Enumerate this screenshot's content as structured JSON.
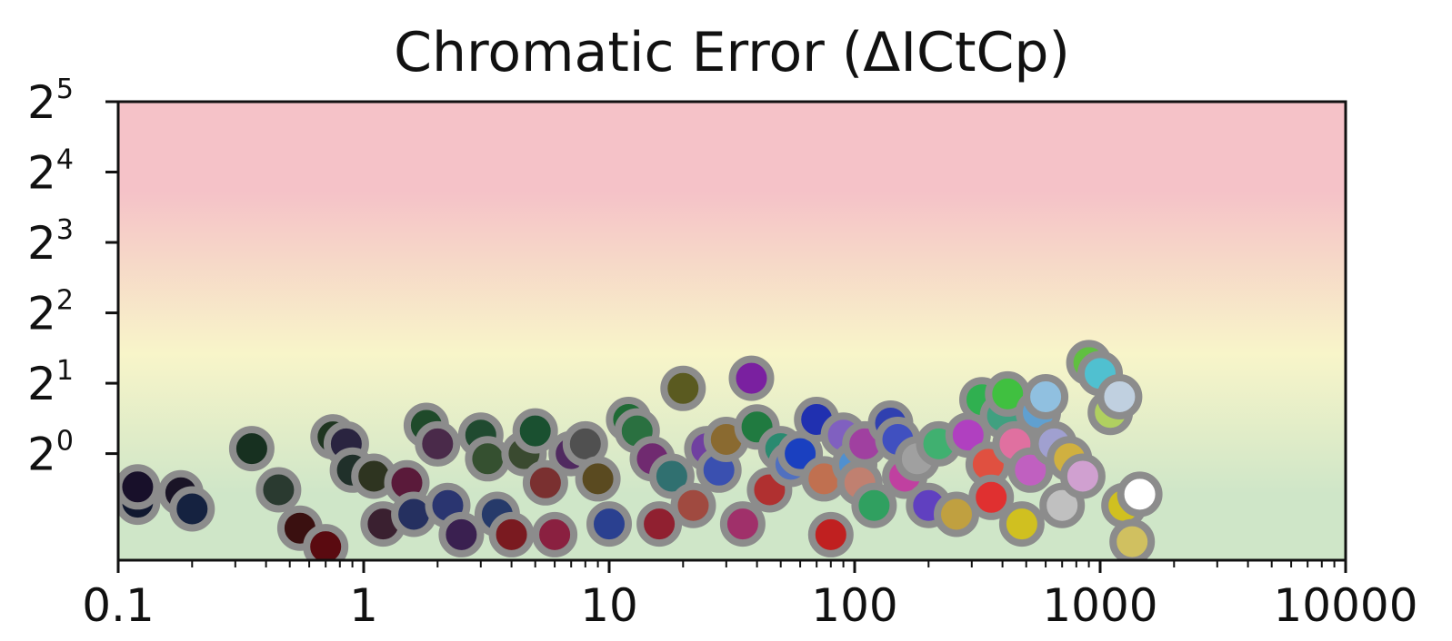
{
  "chart_data": {
    "type": "scatter",
    "title": "Chromatic Error (ΔICtCp)",
    "xlabel": "",
    "ylabel": "",
    "x_scale": "log",
    "y_scale": "log2",
    "xlim": [
      0.1,
      10000
    ],
    "ylim": [
      0.35,
      32
    ],
    "x_ticks": [
      {
        "value": 0.1,
        "label": "0.1"
      },
      {
        "value": 1,
        "label": "1"
      },
      {
        "value": 10,
        "label": "10"
      },
      {
        "value": 100,
        "label": "100"
      },
      {
        "value": 1000,
        "label": "1000"
      },
      {
        "value": 10000,
        "label": "10000"
      }
    ],
    "x_tick_lowest_label": "0.1",
    "y_ticks": [
      {
        "value": 1,
        "base": "2",
        "exp": "0"
      },
      {
        "value": 2,
        "base": "2",
        "exp": "1"
      },
      {
        "value": 4,
        "base": "2",
        "exp": "2"
      },
      {
        "value": 8,
        "base": "2",
        "exp": "3"
      },
      {
        "value": 16,
        "base": "2",
        "exp": "4"
      },
      {
        "value": 32,
        "base": "2",
        "exp": "5"
      }
    ],
    "background_bands": [
      {
        "from": 0.35,
        "to": 1.3,
        "color": "#cfe6c8"
      },
      {
        "from": 1.3,
        "to": 5.5,
        "color": "#f8f5c9"
      },
      {
        "from": 5.5,
        "to": 32,
        "color": "#f5c2c8"
      }
    ],
    "marker_edge_color": "#8c8c8c",
    "grid": false,
    "legend": "none",
    "points": [
      {
        "x": 0.12,
        "y": 0.62,
        "color": "#101830"
      },
      {
        "x": 0.12,
        "y": 0.72,
        "color": "#18102a"
      },
      {
        "x": 0.18,
        "y": 0.68,
        "color": "#1a1426"
      },
      {
        "x": 0.2,
        "y": 0.58,
        "color": "#152240"
      },
      {
        "x": 0.35,
        "y": 1.05,
        "color": "#173020"
      },
      {
        "x": 0.45,
        "y": 0.7,
        "color": "#2a3a30"
      },
      {
        "x": 0.55,
        "y": 0.48,
        "color": "#3a1010"
      },
      {
        "x": 0.7,
        "y": 0.4,
        "color": "#5a0a10"
      },
      {
        "x": 0.75,
        "y": 1.18,
        "color": "#1f3520"
      },
      {
        "x": 0.85,
        "y": 1.1,
        "color": "#2a2440"
      },
      {
        "x": 0.9,
        "y": 0.85,
        "color": "#20302a"
      },
      {
        "x": 1.1,
        "y": 0.8,
        "color": "#2e3420"
      },
      {
        "x": 1.2,
        "y": 0.5,
        "color": "#3a2030"
      },
      {
        "x": 1.5,
        "y": 0.75,
        "color": "#5a1a3a"
      },
      {
        "x": 1.6,
        "y": 0.55,
        "color": "#253060"
      },
      {
        "x": 1.8,
        "y": 1.32,
        "color": "#1f4a2a"
      },
      {
        "x": 2.0,
        "y": 1.1,
        "color": "#4a2a4a"
      },
      {
        "x": 2.2,
        "y": 0.6,
        "color": "#2a3570"
      },
      {
        "x": 2.5,
        "y": 0.45,
        "color": "#3a2050"
      },
      {
        "x": 3.0,
        "y": 1.2,
        "color": "#204a30"
      },
      {
        "x": 3.2,
        "y": 0.95,
        "color": "#355030"
      },
      {
        "x": 3.5,
        "y": 0.55,
        "color": "#263a6a"
      },
      {
        "x": 4.0,
        "y": 0.45,
        "color": "#7a1a20"
      },
      {
        "x": 4.5,
        "y": 1.0,
        "color": "#3a4a30"
      },
      {
        "x": 5.0,
        "y": 1.25,
        "color": "#1a5030"
      },
      {
        "x": 5.5,
        "y": 0.75,
        "color": "#7a3030"
      },
      {
        "x": 6.0,
        "y": 0.45,
        "color": "#8a2040"
      },
      {
        "x": 7.0,
        "y": 1.0,
        "color": "#502a60"
      },
      {
        "x": 8.0,
        "y": 1.1,
        "color": "#505050"
      },
      {
        "x": 9.0,
        "y": 0.78,
        "color": "#5a4a20"
      },
      {
        "x": 10.0,
        "y": 0.5,
        "color": "#2a4090"
      },
      {
        "x": 12.0,
        "y": 1.4,
        "color": "#1f6a35"
      },
      {
        "x": 13.0,
        "y": 1.25,
        "color": "#2a7040"
      },
      {
        "x": 15.0,
        "y": 0.95,
        "color": "#702a70"
      },
      {
        "x": 16.0,
        "y": 0.5,
        "color": "#902030"
      },
      {
        "x": 18.0,
        "y": 0.8,
        "color": "#307070"
      },
      {
        "x": 20.0,
        "y": 1.9,
        "color": "#5a5a20"
      },
      {
        "x": 22.0,
        "y": 0.6,
        "color": "#a04a40"
      },
      {
        "x": 25.0,
        "y": 1.05,
        "color": "#7040a0"
      },
      {
        "x": 28.0,
        "y": 0.85,
        "color": "#3a50b0"
      },
      {
        "x": 30.0,
        "y": 1.15,
        "color": "#8a6a30"
      },
      {
        "x": 35.0,
        "y": 0.5,
        "color": "#a0306a"
      },
      {
        "x": 38.0,
        "y": 2.1,
        "color": "#7a20a0"
      },
      {
        "x": 40.0,
        "y": 1.3,
        "color": "#207a40"
      },
      {
        "x": 45.0,
        "y": 0.7,
        "color": "#b03030"
      },
      {
        "x": 50.0,
        "y": 1.05,
        "color": "#2a8a70"
      },
      {
        "x": 55.0,
        "y": 0.9,
        "color": "#5070c0"
      },
      {
        "x": 60.0,
        "y": 1.0,
        "color": "#1a40c0"
      },
      {
        "x": 70.0,
        "y": 1.4,
        "color": "#2030b0"
      },
      {
        "x": 75.0,
        "y": 0.78,
        "color": "#c07050"
      },
      {
        "x": 80.0,
        "y": 0.45,
        "color": "#c02020"
      },
      {
        "x": 90.0,
        "y": 1.2,
        "color": "#8060c0"
      },
      {
        "x": 100.0,
        "y": 0.9,
        "color": "#5090d0"
      },
      {
        "x": 105.0,
        "y": 0.75,
        "color": "#c08070"
      },
      {
        "x": 110.0,
        "y": 1.1,
        "color": "#a040a0"
      },
      {
        "x": 120.0,
        "y": 0.6,
        "color": "#30a060"
      },
      {
        "x": 140.0,
        "y": 1.35,
        "color": "#3040b0"
      },
      {
        "x": 150.0,
        "y": 1.15,
        "color": "#4050c0"
      },
      {
        "x": 160.0,
        "y": 0.8,
        "color": "#c040a0"
      },
      {
        "x": 180.0,
        "y": 0.95,
        "color": "#a0a0a0"
      },
      {
        "x": 200.0,
        "y": 0.6,
        "color": "#6040c0"
      },
      {
        "x": 220.0,
        "y": 1.1,
        "color": "#40b070"
      },
      {
        "x": 260.0,
        "y": 0.55,
        "color": "#c0a040"
      },
      {
        "x": 290.0,
        "y": 1.2,
        "color": "#b040c0"
      },
      {
        "x": 330.0,
        "y": 1.7,
        "color": "#30b050"
      },
      {
        "x": 350.0,
        "y": 0.9,
        "color": "#e05040"
      },
      {
        "x": 360.0,
        "y": 0.65,
        "color": "#e03030"
      },
      {
        "x": 400.0,
        "y": 1.45,
        "color": "#40a080"
      },
      {
        "x": 420.0,
        "y": 1.8,
        "color": "#40c040"
      },
      {
        "x": 450.0,
        "y": 1.1,
        "color": "#e070a0"
      },
      {
        "x": 480.0,
        "y": 0.5,
        "color": "#d0c020"
      },
      {
        "x": 520.0,
        "y": 0.85,
        "color": "#c060c0"
      },
      {
        "x": 560.0,
        "y": 1.5,
        "color": "#60a0d0"
      },
      {
        "x": 600.0,
        "y": 1.75,
        "color": "#90c0e0"
      },
      {
        "x": 650.0,
        "y": 1.1,
        "color": "#a0a0d0"
      },
      {
        "x": 700.0,
        "y": 0.6,
        "color": "#c0c0c0"
      },
      {
        "x": 750.0,
        "y": 0.95,
        "color": "#d0b040"
      },
      {
        "x": 850.0,
        "y": 0.8,
        "color": "#d0a0d0"
      },
      {
        "x": 900.0,
        "y": 2.45,
        "color": "#60c040"
      },
      {
        "x": 1000.0,
        "y": 2.2,
        "color": "#50c0d0"
      },
      {
        "x": 1100.0,
        "y": 1.5,
        "color": "#b0d060"
      },
      {
        "x": 1200.0,
        "y": 1.75,
        "color": "#c0d0e0"
      },
      {
        "x": 1250.0,
        "y": 0.6,
        "color": "#d0c020"
      },
      {
        "x": 1350.0,
        "y": 0.42,
        "color": "#d0c060"
      },
      {
        "x": 1450.0,
        "y": 0.67,
        "color": "#ffffff"
      }
    ]
  }
}
